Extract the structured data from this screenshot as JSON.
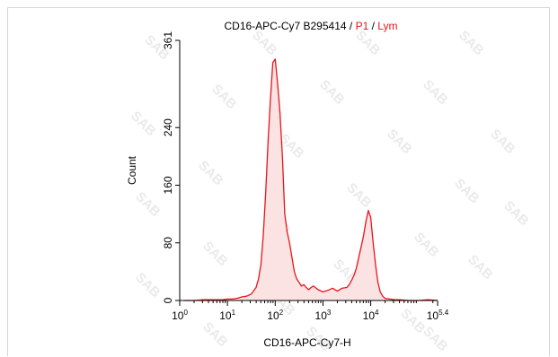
{
  "chart_data": {
    "type": "area",
    "title_parts": [
      {
        "text": "CD16-APC-Cy7 B295414",
        "color": "#000000"
      },
      {
        "text": " / ",
        "color": "#000000"
      },
      {
        "text": "P1",
        "color": "#e8141b"
      },
      {
        "text": " / ",
        "color": "#000000"
      },
      {
        "text": "Lym",
        "color": "#e8141b"
      }
    ],
    "xlabel": "CD16-APC-Cy7-H",
    "ylabel": "Count",
    "xscale": "log",
    "xlim_log10": [
      0,
      5.4
    ],
    "ylim": [
      0,
      361
    ],
    "x_ticks": [
      {
        "base": "10",
        "exp": "0",
        "log10": 0
      },
      {
        "base": "10",
        "exp": "1",
        "log10": 1
      },
      {
        "base": "10",
        "exp": "2",
        "log10": 2
      },
      {
        "base": "10",
        "exp": "3",
        "log10": 3
      },
      {
        "base": "10",
        "exp": "4",
        "log10": 4
      },
      {
        "base": "10",
        "exp": "5.4",
        "log10": 5.4
      }
    ],
    "y_ticks": [
      "0",
      "80",
      "160",
      "240",
      "361"
    ],
    "line_color": "#e8141b",
    "fill_color": "#fbe3e3",
    "series": [
      {
        "x_log10": [
          0.1,
          0.3,
          0.5,
          0.7,
          0.9,
          1.0,
          1.1,
          1.2,
          1.3,
          1.4,
          1.5,
          1.6,
          1.65,
          1.7,
          1.75,
          1.8,
          1.85,
          1.9,
          1.95,
          2.0,
          2.05,
          2.1,
          2.15,
          2.2,
          2.25,
          2.3,
          2.35,
          2.4,
          2.45,
          2.5,
          2.55,
          2.6,
          2.65,
          2.7,
          2.75,
          2.8,
          2.9,
          3.0,
          3.1,
          3.2,
          3.3,
          3.4,
          3.5,
          3.55,
          3.6,
          3.65,
          3.7,
          3.75,
          3.8,
          3.85,
          3.9,
          3.95,
          4.0,
          4.05,
          4.1,
          4.15,
          4.2,
          4.25,
          4.3,
          4.4,
          4.5,
          4.6,
          4.8,
          5.0,
          5.2,
          5.4
        ],
        "counts": [
          0,
          0,
          1,
          1,
          1,
          2,
          2,
          3,
          5,
          6,
          9,
          18,
          30,
          50,
          90,
          150,
          220,
          280,
          330,
          335,
          300,
          260,
          200,
          120,
          95,
          80,
          60,
          40,
          30,
          25,
          20,
          22,
          18,
          15,
          18,
          20,
          15,
          12,
          14,
          17,
          13,
          17,
          18,
          22,
          28,
          35,
          45,
          60,
          75,
          90,
          110,
          125,
          115,
          80,
          50,
          25,
          12,
          6,
          3,
          2,
          1,
          1,
          0,
          0,
          1,
          0
        ]
      }
    ]
  },
  "watermarks": [
    "SAB",
    "SAB",
    "SAB",
    "SAB",
    "SAB",
    "SAB",
    "SAB",
    "SAB",
    "SAB",
    "SAB",
    "SAB",
    "SAB",
    "SAB",
    "SAB",
    "SAB",
    "SAB",
    "SAB",
    "SAB",
    "SAB",
    "SAB",
    "SAB",
    "SAB",
    "SAB",
    "SAB",
    "SAB",
    "SAB",
    "SAB"
  ]
}
